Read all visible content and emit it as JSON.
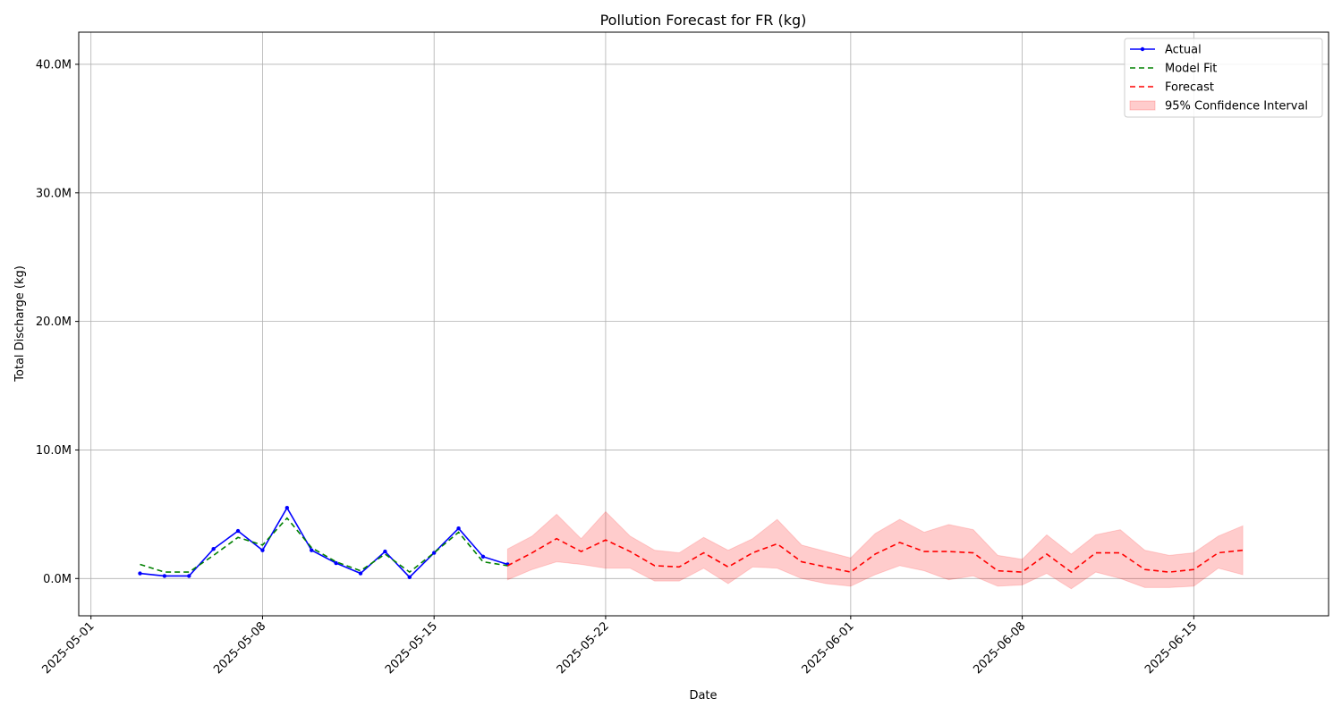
{
  "chart_data": {
    "type": "line",
    "title": "Pollution Forecast for FR (kg)",
    "xlabel": "Date",
    "ylabel": "Total Discharge (kg)",
    "x_range": [
      "2025-04-30T12:00",
      "2025-06-20T12:00"
    ],
    "ylim": [
      -2.9,
      42.5
    ],
    "y_ticks": [
      0,
      10,
      20,
      30,
      40
    ],
    "y_tick_labels": [
      "0.0M",
      "10.0M",
      "20.0M",
      "30.0M",
      "40.0M"
    ],
    "x_ticks": [
      "2025-05-01",
      "2025-05-08",
      "2025-05-15",
      "2025-05-22",
      "2025-06-01",
      "2025-06-08",
      "2025-06-15"
    ],
    "grid": true,
    "legend_position": "top-right",
    "legend": [
      {
        "label": "Actual",
        "color": "#0000ff",
        "style": "solid-marker"
      },
      {
        "label": "Model Fit",
        "color": "#008000",
        "style": "dashed"
      },
      {
        "label": "Forecast",
        "color": "#ff0000",
        "style": "dashed"
      },
      {
        "label": "95% Confidence Interval",
        "color": "#ffc8c8",
        "style": "fill"
      }
    ],
    "series": [
      {
        "name": "Actual",
        "color": "#0000ff",
        "x": [
          "2025-05-03",
          "2025-05-04",
          "2025-05-05",
          "2025-05-06",
          "2025-05-07",
          "2025-05-08",
          "2025-05-09",
          "2025-05-10",
          "2025-05-11",
          "2025-05-12",
          "2025-05-13",
          "2025-05-14",
          "2025-05-15",
          "2025-05-16",
          "2025-05-17",
          "2025-05-18"
        ],
        "y": [
          0.4,
          0.2,
          0.2,
          2.3,
          3.7,
          2.2,
          5.5,
          2.2,
          1.2,
          0.4,
          2.1,
          0.1,
          2.0,
          3.9,
          1.7,
          1.1
        ]
      },
      {
        "name": "Model Fit",
        "color": "#008000",
        "x": [
          "2025-05-03",
          "2025-05-04",
          "2025-05-05",
          "2025-05-06",
          "2025-05-07",
          "2025-05-08",
          "2025-05-09",
          "2025-05-10",
          "2025-05-11",
          "2025-05-12",
          "2025-05-13",
          "2025-05-14",
          "2025-05-15",
          "2025-05-16",
          "2025-05-17",
          "2025-05-18"
        ],
        "y": [
          1.1,
          0.5,
          0.5,
          1.8,
          3.2,
          2.6,
          4.7,
          2.4,
          1.3,
          0.6,
          1.9,
          0.5,
          2.0,
          3.6,
          1.3,
          1.0
        ]
      },
      {
        "name": "Forecast",
        "color": "#ff0000",
        "x": [
          "2025-05-18",
          "2025-05-19",
          "2025-05-20",
          "2025-05-21",
          "2025-05-22",
          "2025-05-23",
          "2025-05-24",
          "2025-05-25",
          "2025-05-26",
          "2025-05-27",
          "2025-05-28",
          "2025-05-29",
          "2025-05-30",
          "2025-05-31",
          "2025-06-01",
          "2025-06-02",
          "2025-06-03",
          "2025-06-04",
          "2025-06-05",
          "2025-06-06",
          "2025-06-07",
          "2025-06-08",
          "2025-06-09",
          "2025-06-10",
          "2025-06-11",
          "2025-06-12",
          "2025-06-13",
          "2025-06-14",
          "2025-06-15",
          "2025-06-16",
          "2025-06-17"
        ],
        "y": [
          1.0,
          2.0,
          3.1,
          2.1,
          3.0,
          2.1,
          1.0,
          0.9,
          2.0,
          0.9,
          2.0,
          2.7,
          1.3,
          0.9,
          0.5,
          1.9,
          2.8,
          2.1,
          2.1,
          2.0,
          0.6,
          0.5,
          1.9,
          0.5,
          2.0,
          2.0,
          0.7,
          0.5,
          0.7,
          2.0,
          2.2
        ],
        "lower": [
          -0.1,
          0.7,
          1.3,
          1.1,
          0.8,
          0.8,
          -0.2,
          -0.2,
          0.8,
          -0.4,
          0.9,
          0.8,
          0.0,
          -0.4,
          -0.6,
          0.3,
          1.0,
          0.6,
          -0.1,
          0.2,
          -0.6,
          -0.5,
          0.4,
          -0.8,
          0.5,
          0.0,
          -0.7,
          -0.7,
          -0.6,
          0.8,
          0.3
        ],
        "upper": [
          2.3,
          3.3,
          5.0,
          3.1,
          5.2,
          3.3,
          2.2,
          2.0,
          3.2,
          2.2,
          3.1,
          4.6,
          2.6,
          2.1,
          1.6,
          3.5,
          4.6,
          3.6,
          4.2,
          3.8,
          1.8,
          1.5,
          3.4,
          1.9,
          3.4,
          3.8,
          2.2,
          1.8,
          2.0,
          3.3,
          4.1
        ]
      }
    ]
  }
}
